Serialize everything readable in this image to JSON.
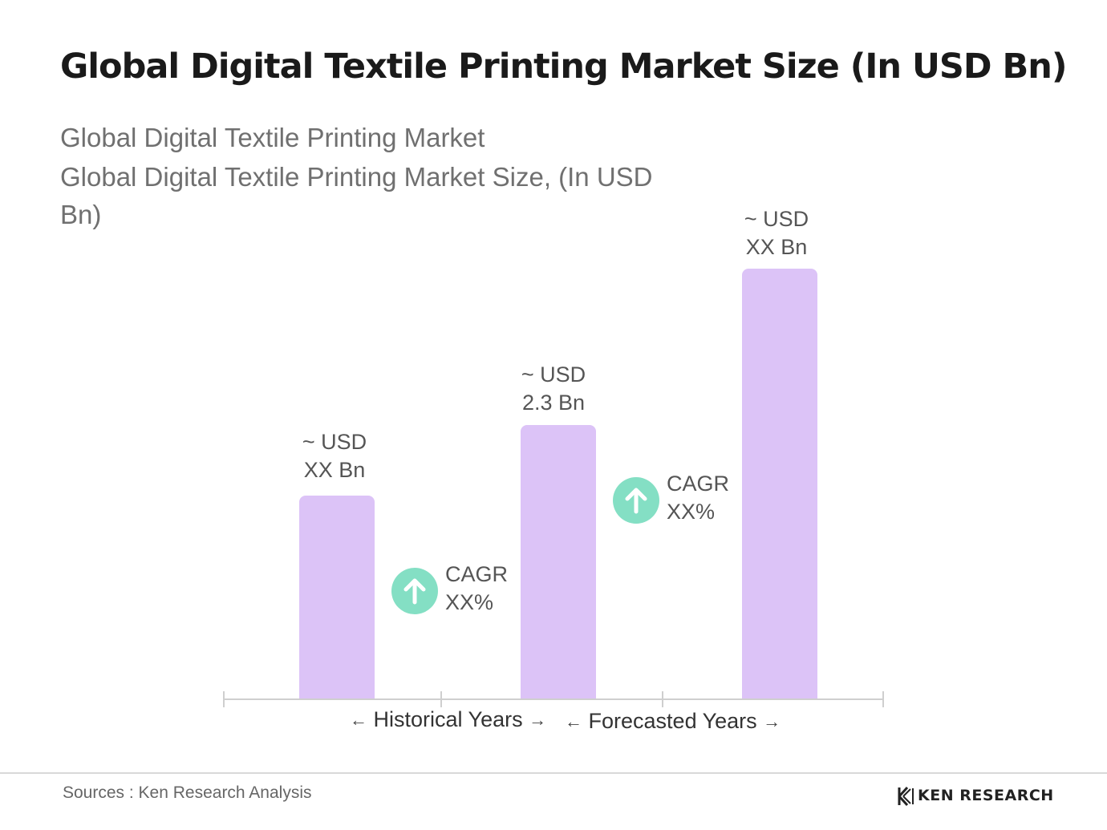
{
  "title": "Global Digital Textile Printing Market Size (In USD Bn)",
  "subtitle_lines": [
    "Global Digital Textile Printing Market",
    "Global Digital Textile Printing Market Size, (In USD",
    "Bn)"
  ],
  "chart_data": {
    "type": "bar",
    "categories": [
      "",
      "",
      ""
    ],
    "values": [
      null,
      2.3,
      null
    ],
    "data_labels": [
      [
        "~  USD",
        "XX Bn"
      ],
      [
        "~  USD",
        "2.3 Bn"
      ],
      [
        "~ USD",
        "XX Bn"
      ]
    ],
    "bar_color": "#dcc3f7",
    "cagr": [
      {
        "line1": "CAGR",
        "line2": "XX%"
      },
      {
        "line1": "CAGR",
        "line2": "XX%"
      }
    ],
    "cagr_color": "#84dfc4",
    "periods": [
      {
        "label": "Historical Years",
        "left_arrow": "←",
        "right_arrow": "→"
      },
      {
        "label": "Forecasted Years",
        "left_arrow": "←",
        "right_arrow": "→"
      }
    ],
    "grid": false,
    "legend": "none"
  },
  "footer": {
    "source": "Sources : Ken Research Analysis",
    "logo_text": "KEN RESEARCH",
    "logo_icon": "ken-research-logo-icon"
  }
}
